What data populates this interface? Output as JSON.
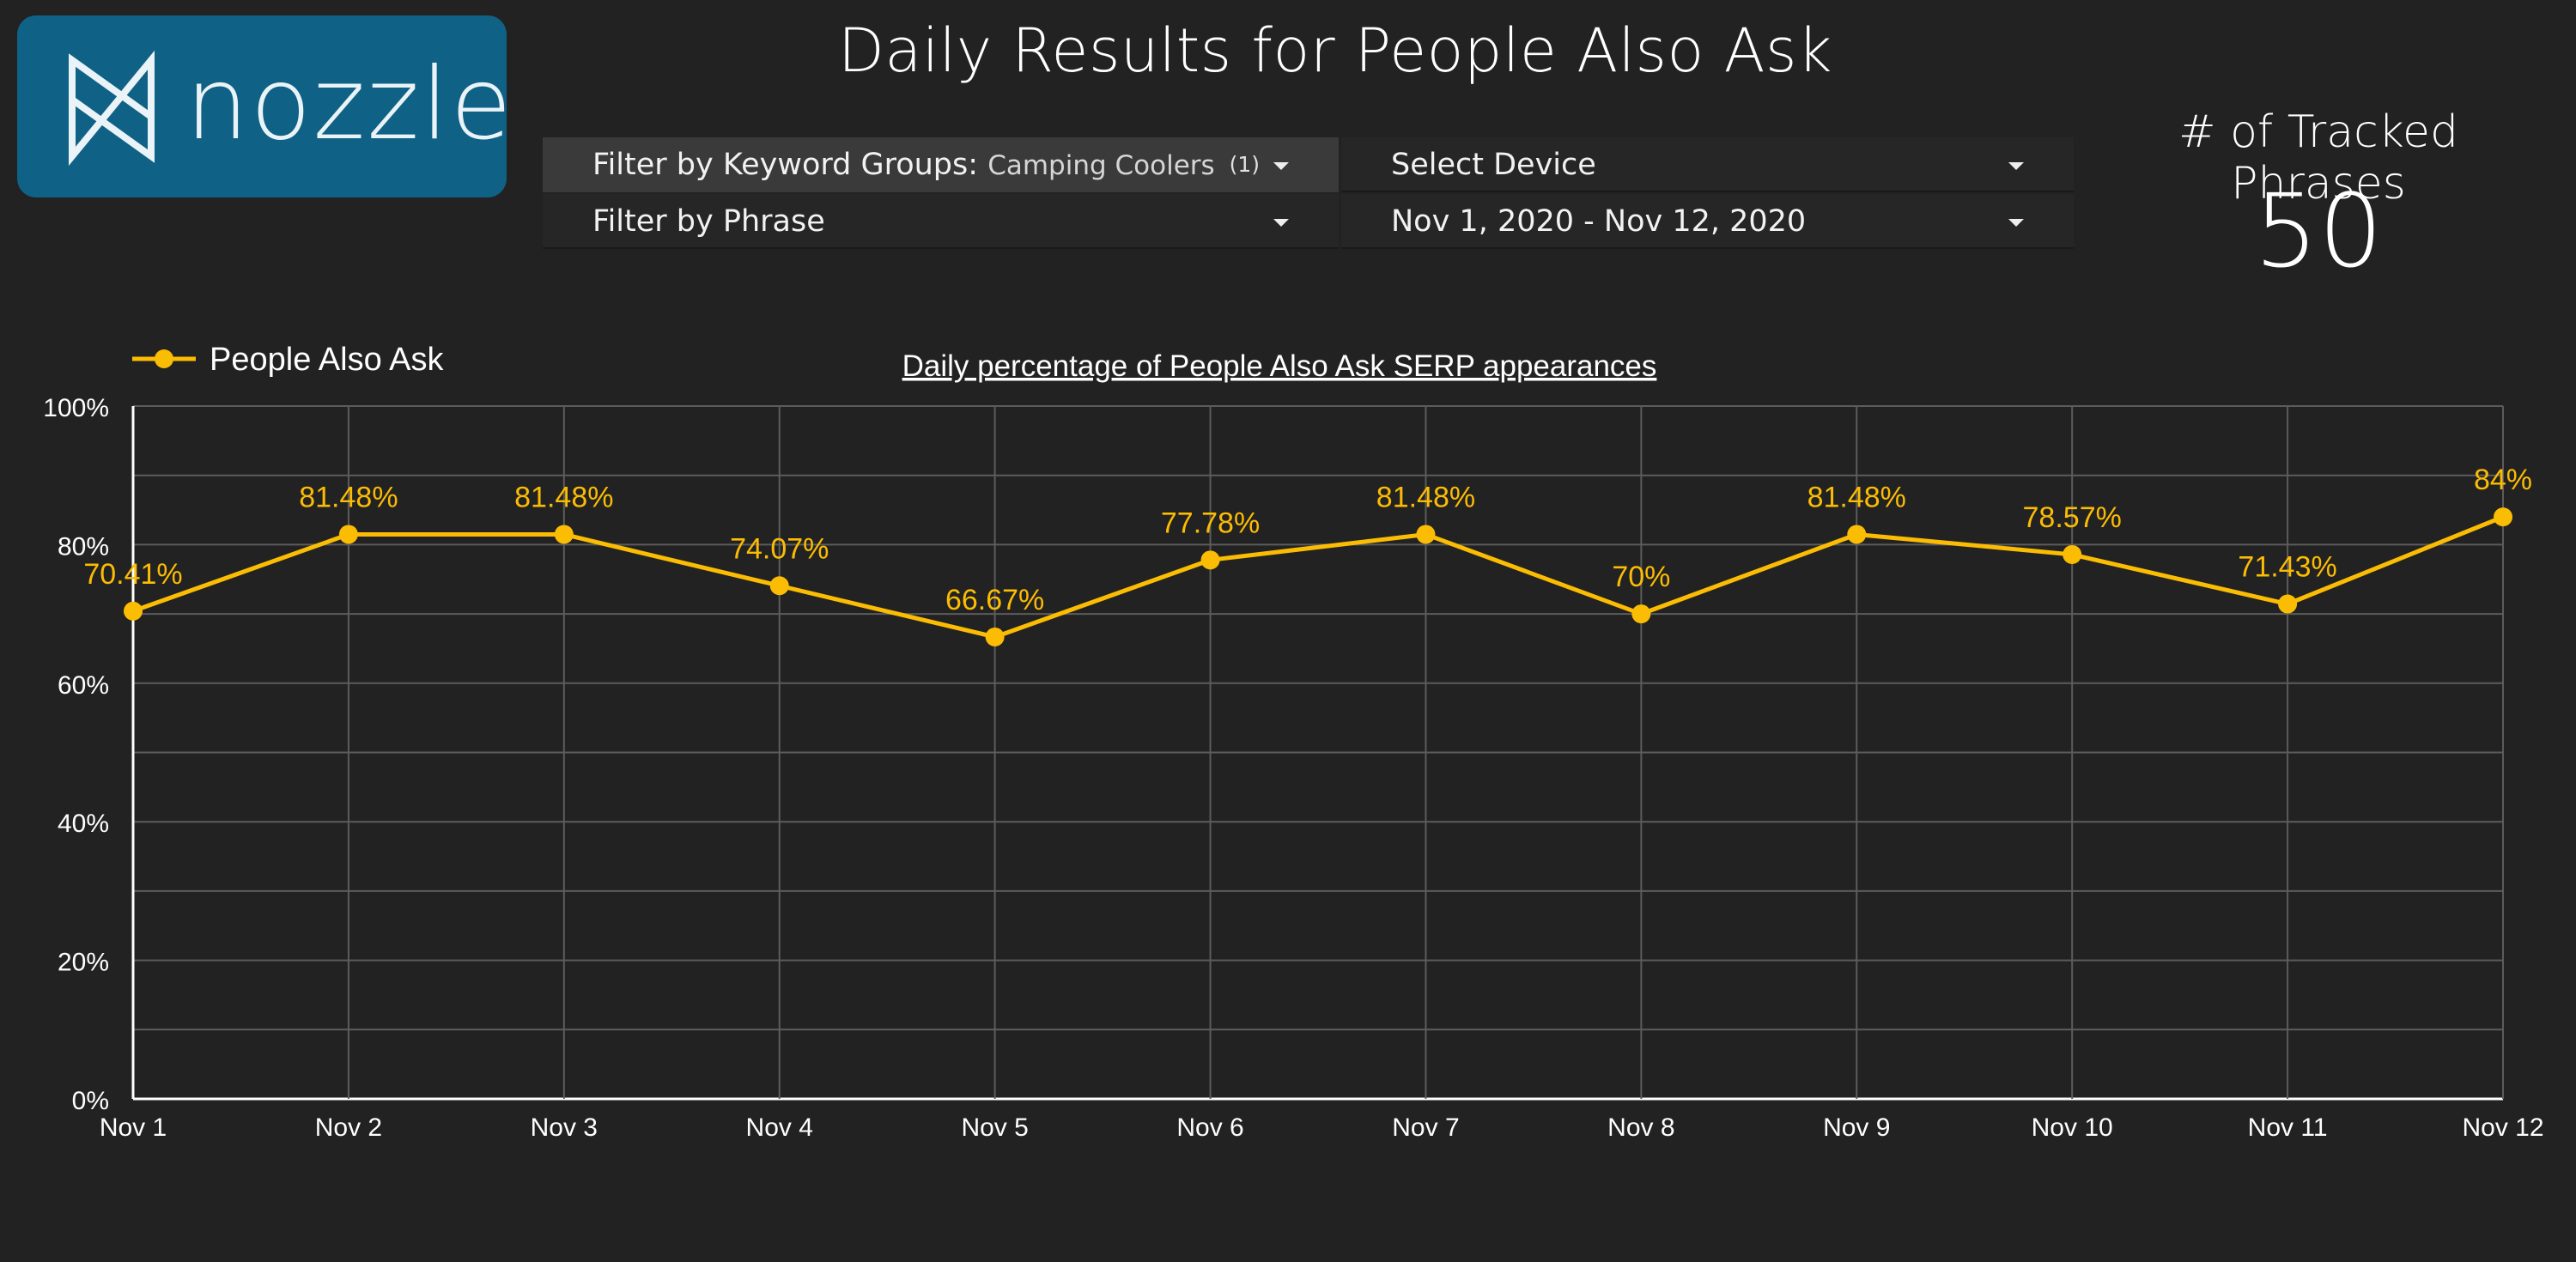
{
  "brand": {
    "name": "nozzle",
    "logo_bg": "#0f6286"
  },
  "header": {
    "title": "Daily Results for People Also Ask"
  },
  "filters": {
    "keyword_groups": {
      "label": "Filter by Keyword Groups",
      "value": "Camping Coolers",
      "count": "(1)"
    },
    "phrase": {
      "label": "Filter by Phrase"
    },
    "device": {
      "label": "Select Device"
    },
    "date_range": {
      "value": "Nov 1, 2020 - Nov 12, 2020"
    }
  },
  "kpi": {
    "label": "# of Tracked Phrases",
    "value": "50"
  },
  "chart_data": {
    "type": "line",
    "title": "Daily percentage of People Also Ask SERP appearances",
    "categories": [
      "Nov 1",
      "Nov 2",
      "Nov 3",
      "Nov 4",
      "Nov 5",
      "Nov 6",
      "Nov 7",
      "Nov 8",
      "Nov 9",
      "Nov 10",
      "Nov 11",
      "Nov 12"
    ],
    "series": [
      {
        "name": "People Also Ask",
        "color": "#fbbc04",
        "values": [
          70.41,
          81.48,
          81.48,
          74.07,
          66.67,
          77.78,
          81.48,
          70,
          81.48,
          78.57,
          71.43,
          84
        ],
        "labels": [
          "70.41%",
          "81.48%",
          "81.48%",
          "74.07%",
          "66.67%",
          "77.78%",
          "81.48%",
          "70%",
          "81.48%",
          "78.57%",
          "71.43%",
          "84%"
        ]
      }
    ],
    "y_ticks": [
      "0%",
      "20%",
      "40%",
      "60%",
      "80%",
      "100%"
    ],
    "ylim": [
      0,
      100
    ],
    "grid": true,
    "legend_position": "top-left"
  }
}
